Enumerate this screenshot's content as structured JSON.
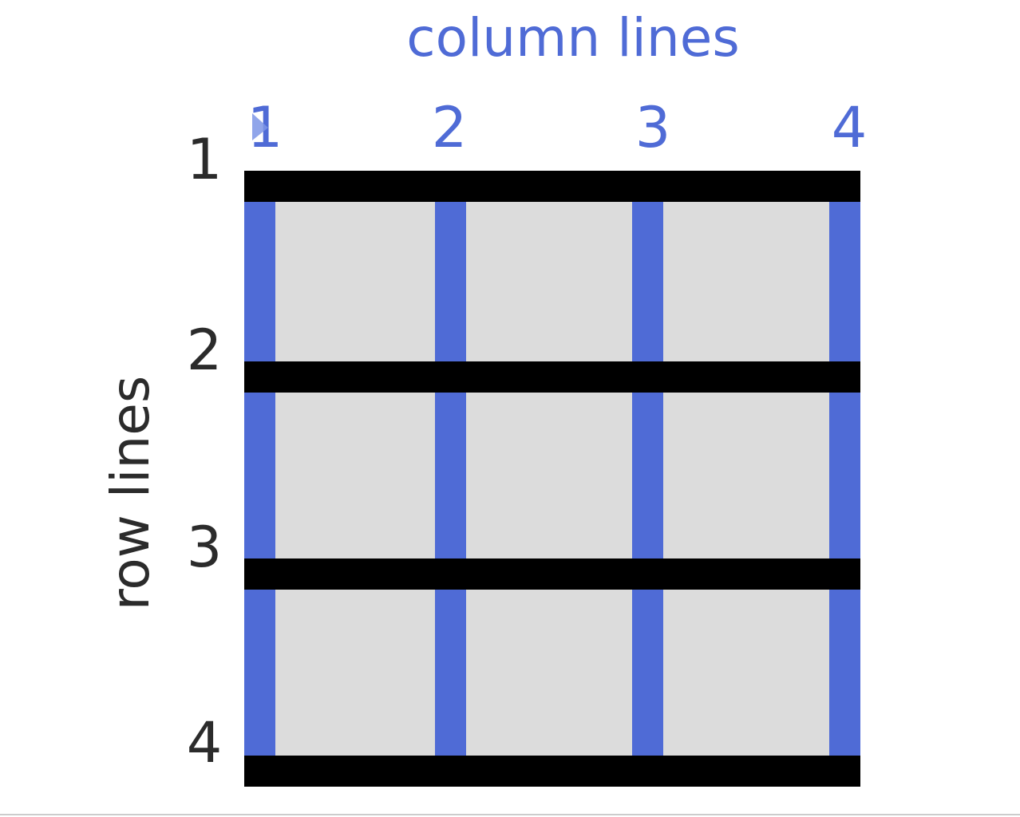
{
  "titles": {
    "column_lines": "column lines",
    "row_lines": "row lines"
  },
  "column_numbers": [
    "1",
    "2",
    "3",
    "4"
  ],
  "row_numbers": [
    "1",
    "2",
    "3",
    "4"
  ],
  "colors": {
    "column_line": "#4f6bd6",
    "row_line": "#000000",
    "cell_fill": "#dcdcdc",
    "column_label": "#4f6bd6",
    "row_label": "#2b2b2b"
  }
}
